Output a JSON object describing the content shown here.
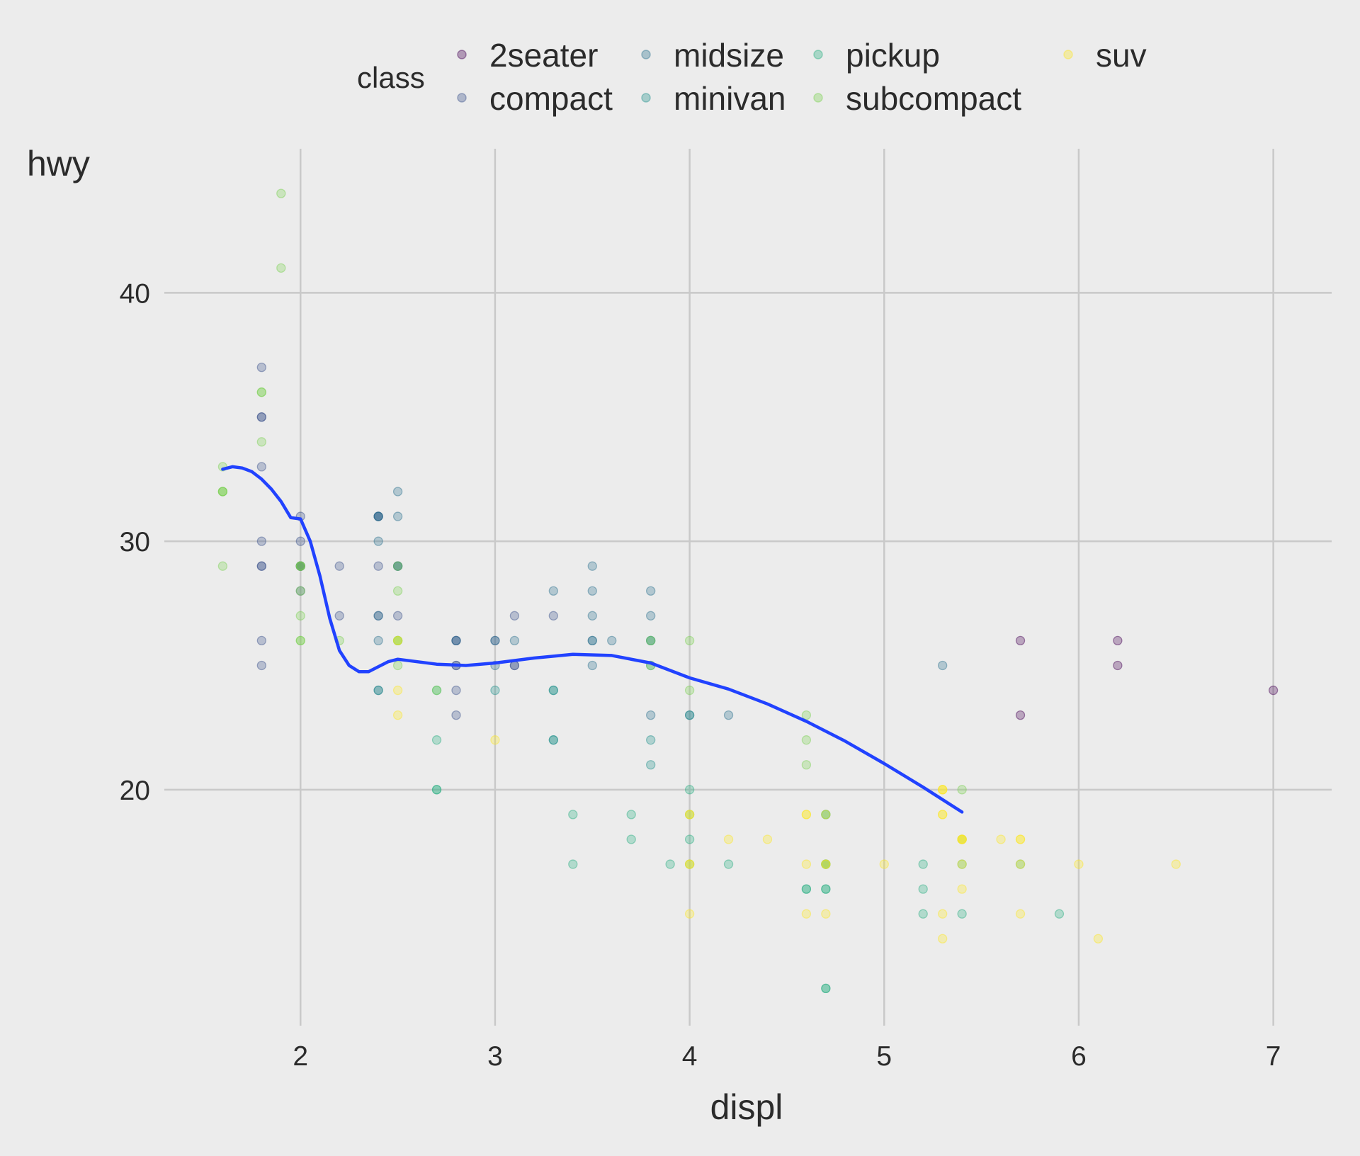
{
  "chart_data": {
    "type": "scatter",
    "xlabel": "displ",
    "ylabel": "hwy",
    "xlim": [
      1.3,
      7.3
    ],
    "ylim": [
      10.5,
      45.8
    ],
    "xticks": [
      2,
      3,
      4,
      5,
      6,
      7
    ],
    "yticks": [
      20,
      30,
      40
    ],
    "grid": true,
    "legend": {
      "title": "class",
      "placement": "top",
      "entries": [
        {
          "name": "2seater",
          "color": "#440154"
        },
        {
          "name": "compact",
          "color": "#3b528b"
        },
        {
          "name": "midsize",
          "color": "#2c728e"
        },
        {
          "name": "minivan",
          "color": "#21918c"
        },
        {
          "name": "pickup",
          "color": "#28ae80"
        },
        {
          "name": "subcompact",
          "color": "#7ad151"
        },
        {
          "name": "suv",
          "color": "#fde725"
        }
      ]
    },
    "series": [
      {
        "name": "2seater",
        "points": [
          [
            5.7,
            26
          ],
          [
            5.7,
            23
          ],
          [
            6.2,
            26
          ],
          [
            6.2,
            25
          ],
          [
            7.0,
            24
          ]
        ]
      },
      {
        "name": "compact",
        "points": [
          [
            1.8,
            29
          ],
          [
            1.8,
            29
          ],
          [
            2.0,
            31
          ],
          [
            2.0,
            30
          ],
          [
            2.8,
            26
          ],
          [
            2.8,
            26
          ],
          [
            3.1,
            27
          ],
          [
            1.8,
            26
          ],
          [
            1.8,
            25
          ],
          [
            2.0,
            28
          ],
          [
            2.0,
            29
          ],
          [
            2.8,
            25
          ],
          [
            2.8,
            25
          ],
          [
            3.1,
            25
          ],
          [
            3.1,
            25
          ],
          [
            2.2,
            27
          ],
          [
            2.2,
            29
          ],
          [
            2.4,
            31
          ],
          [
            2.4,
            31
          ],
          [
            3.0,
            26
          ],
          [
            3.3,
            27
          ],
          [
            1.8,
            37
          ],
          [
            1.8,
            35
          ],
          [
            1.8,
            35
          ],
          [
            1.8,
            33
          ],
          [
            2.0,
            29
          ],
          [
            2.0,
            29
          ],
          [
            2.8,
            24
          ],
          [
            2.8,
            23
          ],
          [
            2.0,
            29
          ],
          [
            2.0,
            29
          ],
          [
            2.5,
            27
          ],
          [
            2.5,
            29
          ],
          [
            2.4,
            27
          ],
          [
            1.8,
            30
          ],
          [
            2.4,
            29
          ]
        ]
      },
      {
        "name": "midsize",
        "points": [
          [
            2.4,
            30
          ],
          [
            2.4,
            31
          ],
          [
            3.1,
            26
          ],
          [
            3.5,
            26
          ],
          [
            3.6,
            26
          ],
          [
            3.3,
            28
          ],
          [
            3.8,
            27
          ],
          [
            3.8,
            28
          ],
          [
            2.5,
            32
          ],
          [
            2.5,
            31
          ],
          [
            3.5,
            29
          ],
          [
            3.5,
            27
          ],
          [
            2.4,
            26
          ],
          [
            3.5,
            26
          ],
          [
            2.5,
            29
          ],
          [
            2.4,
            27
          ],
          [
            3.0,
            26
          ],
          [
            3.5,
            25
          ],
          [
            5.3,
            25
          ],
          [
            3.8,
            26
          ],
          [
            2.4,
            24
          ],
          [
            4.0,
            23
          ],
          [
            4.2,
            23
          ],
          [
            2.5,
            29
          ],
          [
            2.8,
            26
          ],
          [
            3.0,
            25
          ],
          [
            3.8,
            23
          ],
          [
            3.5,
            28
          ],
          [
            2.4,
            31
          ]
        ]
      },
      {
        "name": "minivan",
        "points": [
          [
            2.4,
            24
          ],
          [
            3.0,
            24
          ],
          [
            3.3,
            22
          ],
          [
            3.3,
            22
          ],
          [
            3.3,
            24
          ],
          [
            3.8,
            21
          ],
          [
            3.8,
            22
          ],
          [
            3.8,
            26
          ],
          [
            4.0,
            23
          ],
          [
            3.3,
            24
          ],
          [
            3.8,
            25
          ]
        ]
      },
      {
        "name": "pickup",
        "points": [
          [
            2.7,
            20
          ],
          [
            2.7,
            20
          ],
          [
            3.7,
            19
          ],
          [
            3.7,
            18
          ],
          [
            4.7,
            17
          ],
          [
            4.7,
            17
          ],
          [
            4.7,
            16
          ],
          [
            5.2,
            17
          ],
          [
            5.2,
            15
          ],
          [
            4.7,
            12
          ],
          [
            4.7,
            17
          ],
          [
            5.7,
            17
          ],
          [
            5.9,
            15
          ],
          [
            4.7,
            19
          ],
          [
            4.7,
            19
          ],
          [
            5.2,
            16
          ],
          [
            5.4,
            17
          ],
          [
            5.4,
            15
          ],
          [
            2.7,
            24
          ],
          [
            3.4,
            17
          ],
          [
            4.0,
            20
          ],
          [
            4.7,
            12
          ],
          [
            3.4,
            19
          ],
          [
            4.6,
            16
          ],
          [
            5.4,
            18
          ],
          [
            4.6,
            16
          ],
          [
            4.0,
            17
          ],
          [
            3.9,
            17
          ],
          [
            4.0,
            19
          ],
          [
            4.2,
            17
          ],
          [
            2.7,
            22
          ],
          [
            4.0,
            18
          ],
          [
            4.7,
            16
          ]
        ]
      },
      {
        "name": "subcompact",
        "points": [
          [
            3.8,
            26
          ],
          [
            3.8,
            25
          ],
          [
            4.0,
            26
          ],
          [
            4.0,
            24
          ],
          [
            4.6,
            21
          ],
          [
            4.6,
            22
          ],
          [
            4.6,
            23
          ],
          [
            5.4,
            20
          ],
          [
            1.6,
            33
          ],
          [
            1.6,
            32
          ],
          [
            1.6,
            32
          ],
          [
            1.6,
            29
          ],
          [
            1.6,
            32
          ],
          [
            1.8,
            34
          ],
          [
            1.8,
            36
          ],
          [
            1.8,
            36
          ],
          [
            2.0,
            29
          ],
          [
            1.9,
            44
          ],
          [
            1.9,
            41
          ],
          [
            2.0,
            29
          ],
          [
            2.0,
            26
          ],
          [
            2.0,
            28
          ],
          [
            2.0,
            29
          ],
          [
            2.2,
            26
          ],
          [
            2.5,
            29
          ],
          [
            2.5,
            26
          ],
          [
            2.5,
            26
          ],
          [
            2.5,
            28
          ],
          [
            2.5,
            26
          ],
          [
            2.0,
            27
          ],
          [
            2.0,
            26
          ],
          [
            2.7,
            24
          ],
          [
            2.5,
            25
          ]
        ]
      },
      {
        "name": "suv",
        "points": [
          [
            5.3,
            20
          ],
          [
            5.3,
            15
          ],
          [
            5.3,
            20
          ],
          [
            5.7,
            17
          ],
          [
            6.0,
            17
          ],
          [
            5.3,
            20
          ],
          [
            5.3,
            19
          ],
          [
            5.7,
            18
          ],
          [
            6.5,
            17
          ],
          [
            4.0,
            17
          ],
          [
            4.0,
            19
          ],
          [
            4.7,
            17
          ],
          [
            4.7,
            15
          ],
          [
            4.7,
            17
          ],
          [
            5.4,
            17
          ],
          [
            5.4,
            18
          ],
          [
            5.4,
            18
          ],
          [
            5.4,
            16
          ],
          [
            4.0,
            17
          ],
          [
            4.0,
            15
          ],
          [
            4.6,
            19
          ],
          [
            5.0,
            17
          ],
          [
            4.2,
            18
          ],
          [
            4.4,
            18
          ],
          [
            4.6,
            17
          ],
          [
            4.6,
            15
          ],
          [
            5.4,
            18
          ],
          [
            5.6,
            18
          ],
          [
            5.3,
            14
          ],
          [
            6.1,
            14
          ],
          [
            5.7,
            15
          ],
          [
            4.7,
            19
          ],
          [
            5.7,
            18
          ],
          [
            2.5,
            24
          ],
          [
            2.5,
            23
          ],
          [
            3.0,
            22
          ],
          [
            4.0,
            19
          ],
          [
            4.6,
            19
          ],
          [
            5.4,
            18
          ],
          [
            5.3,
            19
          ],
          [
            2.5,
            26
          ]
        ]
      }
    ],
    "trend": {
      "color": "#2142ff",
      "points": [
        [
          1.6,
          32.9
        ],
        [
          1.65,
          33.0
        ],
        [
          1.7,
          32.95
        ],
        [
          1.75,
          32.8
        ],
        [
          1.8,
          32.5
        ],
        [
          1.85,
          32.1
        ],
        [
          1.9,
          31.6
        ],
        [
          1.95,
          30.95
        ],
        [
          2.0,
          30.9
        ],
        [
          2.05,
          30.0
        ],
        [
          2.1,
          28.6
        ],
        [
          2.15,
          26.9
        ],
        [
          2.2,
          25.6
        ],
        [
          2.25,
          25.0
        ],
        [
          2.3,
          24.75
        ],
        [
          2.35,
          24.75
        ],
        [
          2.4,
          24.95
        ],
        [
          2.45,
          25.15
        ],
        [
          2.5,
          25.25
        ],
        [
          2.6,
          25.15
        ],
        [
          2.7,
          25.05
        ],
        [
          2.85,
          25.0
        ],
        [
          3.0,
          25.1
        ],
        [
          3.2,
          25.3
        ],
        [
          3.4,
          25.45
        ],
        [
          3.6,
          25.4
        ],
        [
          3.8,
          25.1
        ],
        [
          4.0,
          24.5
        ],
        [
          4.2,
          24.05
        ],
        [
          4.4,
          23.45
        ],
        [
          4.6,
          22.75
        ],
        [
          4.8,
          21.95
        ],
        [
          5.0,
          21.05
        ],
        [
          5.2,
          20.1
        ],
        [
          5.4,
          19.1
        ]
      ]
    }
  }
}
